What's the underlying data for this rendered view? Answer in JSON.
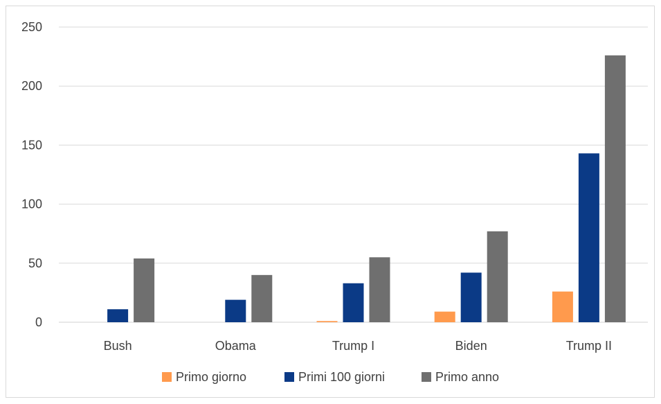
{
  "chart_data": {
    "type": "bar",
    "title": "",
    "xlabel": "",
    "ylabel": "",
    "categories": [
      "Bush",
      "Obama",
      "Trump I",
      "Biden",
      "Trump II"
    ],
    "ylim": [
      0,
      250
    ],
    "yticks": [
      0,
      50,
      100,
      150,
      200,
      250
    ],
    "grid": true,
    "legend_position": "bottom",
    "series": [
      {
        "name": "Primo giorno",
        "color": "#ff9a4d",
        "values": [
          0,
          0,
          1,
          9,
          26
        ]
      },
      {
        "name": "Primi 100 giorni",
        "color": "#0b3a86",
        "values": [
          11,
          19,
          33,
          42,
          143
        ]
      },
      {
        "name": "Primo anno",
        "color": "#6f6f6f",
        "values": [
          54,
          40,
          55,
          77,
          226
        ]
      }
    ]
  }
}
